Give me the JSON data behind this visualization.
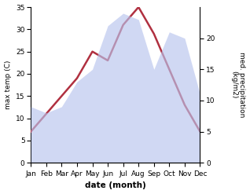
{
  "months": [
    "Jan",
    "Feb",
    "Mar",
    "Apr",
    "May",
    "Jun",
    "Jul",
    "Aug",
    "Sep",
    "Oct",
    "Nov",
    "Dec"
  ],
  "month_positions": [
    0,
    1,
    2,
    3,
    4,
    5,
    6,
    7,
    8,
    9,
    10,
    11
  ],
  "temperature": [
    7,
    11,
    15,
    19,
    25,
    23,
    31,
    35,
    29,
    21,
    13,
    7
  ],
  "precipitation": [
    9,
    8,
    9,
    13,
    15,
    22,
    24,
    23,
    15,
    21,
    20,
    11
  ],
  "temp_color": "#b03040",
  "precip_fill_color": "#b8c4ee",
  "precip_alpha": 0.65,
  "xlabel": "date (month)",
  "ylabel_left": "max temp (C)",
  "ylabel_right": "med. precipitation\n(kg/m2)",
  "ylim_left": [
    0,
    35
  ],
  "ylim_right": [
    0,
    25
  ],
  "yticks_left": [
    0,
    5,
    10,
    15,
    20,
    25,
    30,
    35
  ],
  "yticks_right": [
    0,
    5,
    10,
    15,
    20
  ],
  "background_color": "#ffffff",
  "linewidth": 1.8
}
